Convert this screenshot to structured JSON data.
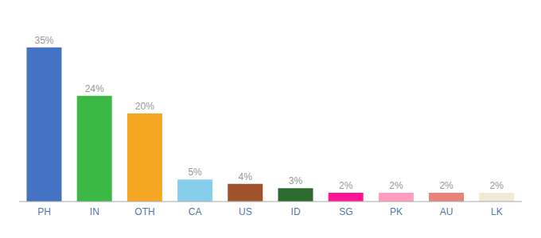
{
  "chart_data": {
    "type": "bar",
    "categories": [
      "PH",
      "IN",
      "OTH",
      "CA",
      "US",
      "ID",
      "SG",
      "PK",
      "AU",
      "LK"
    ],
    "values": [
      35,
      24,
      20,
      5,
      4,
      3,
      2,
      2,
      2,
      2
    ],
    "value_labels": [
      "35%",
      "24%",
      "20%",
      "5%",
      "4%",
      "3%",
      "2%",
      "2%",
      "2%",
      "2%"
    ],
    "colors": [
      "#4472c4",
      "#3cb844",
      "#f5a623",
      "#87ceeb",
      "#a0522d",
      "#2d6a2d",
      "#ff1493",
      "#ff9ec0",
      "#e8837a",
      "#f0ead6"
    ],
    "ylim": [
      0,
      40
    ],
    "data_labels": true,
    "tick_labels": "x",
    "grid": false
  }
}
